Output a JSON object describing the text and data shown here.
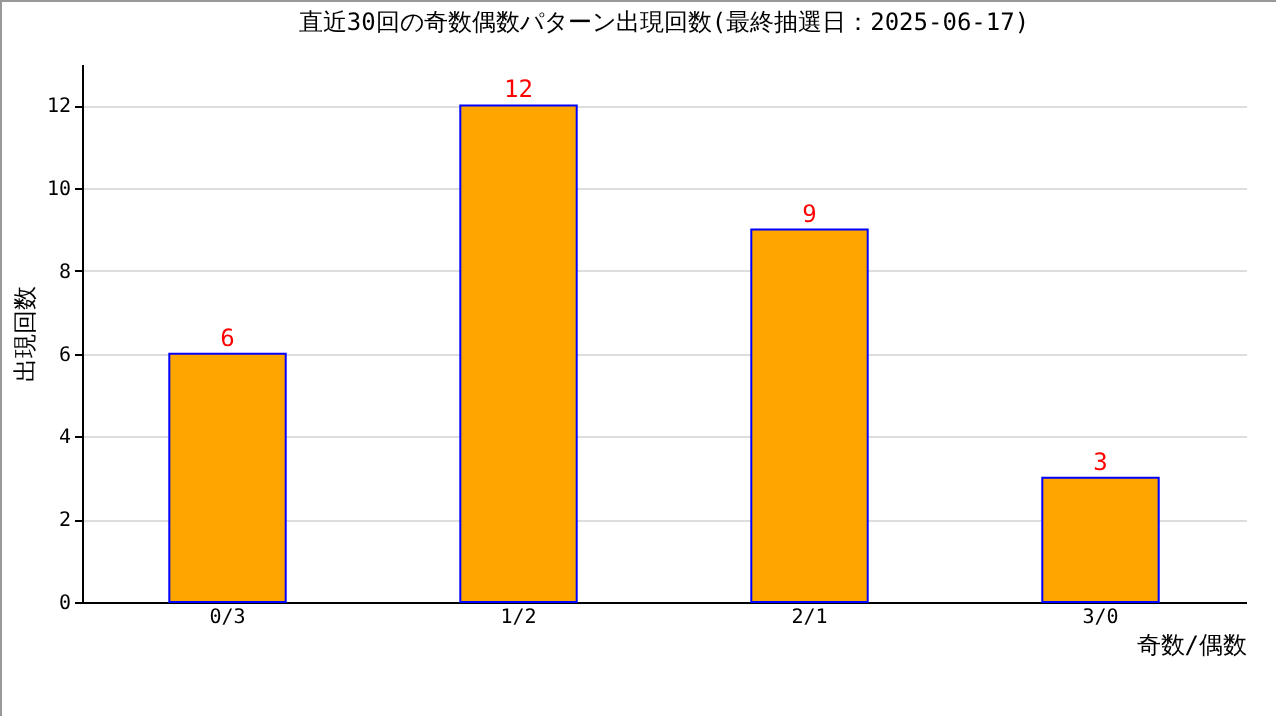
{
  "chart_data": {
    "type": "bar",
    "title": "直近30回の奇数偶数パターン出現回数(最終抽選日：2025-06-17)",
    "xlabel": "奇数/偶数",
    "ylabel": "出現回数",
    "categories": [
      "0/3",
      "1/2",
      "2/1",
      "3/0"
    ],
    "series": [
      {
        "color": "#ffa500",
        "values": [
          6,
          12,
          9,
          3
        ]
      }
    ],
    "ylim": [
      0,
      13
    ],
    "yticks": [
      0,
      2,
      4,
      6,
      8,
      10,
      12
    ],
    "grid": "y",
    "data_labels": true
  }
}
